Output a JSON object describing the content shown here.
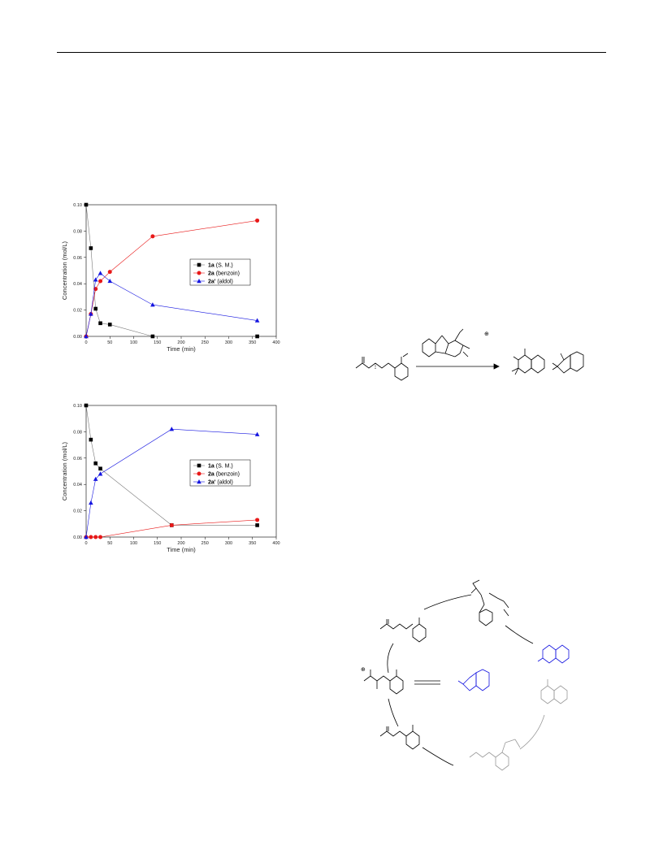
{
  "colors": {
    "sm": "#000000",
    "benzoin": "#e81818",
    "aldol": "#1515e0",
    "grid": "#9a9a9a",
    "cycle_blue": "#1515e0",
    "cycle_gray": "#9a9a9a"
  },
  "chart_data": [
    {
      "type": "line",
      "xlabel": "Time (min)",
      "ylabel": "Concentration (mol/L)",
      "xlim": [
        0,
        400
      ],
      "ylim": [
        0,
        0.1
      ],
      "xticks": [
        "0",
        "50",
        "100",
        "150",
        "200",
        "250",
        "300",
        "350",
        "400"
      ],
      "yticks": [
        "0.00",
        "0.02",
        "0.04",
        "0.06",
        "0.08",
        "0.10"
      ],
      "legend_position": "right-middle",
      "series": [
        {
          "name_bold": "1a",
          "name_rest": " (S. M.)",
          "marker": "square",
          "color_key": "sm",
          "x": [
            0,
            10,
            20,
            30,
            50,
            140,
            360
          ],
          "y": [
            0.1,
            0.067,
            0.021,
            0.01,
            0.009,
            0.0,
            0.0
          ]
        },
        {
          "name_bold": "2a",
          "name_rest": " (benzoin)",
          "marker": "circle",
          "color_key": "benzoin",
          "x": [
            0,
            10,
            20,
            30,
            50,
            140,
            360
          ],
          "y": [
            0.0,
            0.017,
            0.036,
            0.042,
            0.049,
            0.076,
            0.088
          ]
        },
        {
          "name_bold": "2a'",
          "name_rest": " (aldol)",
          "marker": "triangle",
          "color_key": "aldol",
          "x": [
            0,
            10,
            20,
            30,
            50,
            140,
            360
          ],
          "y": [
            0.0,
            0.017,
            0.043,
            0.048,
            0.042,
            0.024,
            0.012
          ]
        }
      ]
    },
    {
      "type": "line",
      "xlabel": "Time (min)",
      "ylabel": "Concentration (mol/L)",
      "xlim": [
        0,
        400
      ],
      "ylim": [
        0,
        0.1
      ],
      "xticks": [
        "0",
        "50",
        "100",
        "150",
        "200",
        "250",
        "300",
        "350",
        "400"
      ],
      "yticks": [
        "0.00",
        "0.02",
        "0.04",
        "0.06",
        "0.08",
        "0.10"
      ],
      "legend_position": "right-middle",
      "series": [
        {
          "name_bold": "1a",
          "name_rest": " (S. M.)",
          "marker": "square",
          "color_key": "sm",
          "x": [
            0,
            10,
            20,
            30,
            180,
            360
          ],
          "y": [
            0.1,
            0.074,
            0.056,
            0.052,
            0.009,
            0.009
          ]
        },
        {
          "name_bold": "2a",
          "name_rest": " (benzoin)",
          "marker": "circle",
          "color_key": "benzoin",
          "x": [
            0,
            10,
            20,
            30,
            180,
            360
          ],
          "y": [
            0.0,
            0.0,
            0.0,
            0.0,
            0.009,
            0.013
          ]
        },
        {
          "name_bold": "2a'",
          "name_rest": " (aldol)",
          "marker": "triangle",
          "color_key": "aldol",
          "x": [
            0,
            10,
            20,
            30,
            180,
            360
          ],
          "y": [
            0.0,
            0.026,
            0.044,
            0.048,
            0.082,
            0.078
          ]
        }
      ]
    }
  ],
  "scheme": {
    "charge_symbol": "⊕"
  }
}
